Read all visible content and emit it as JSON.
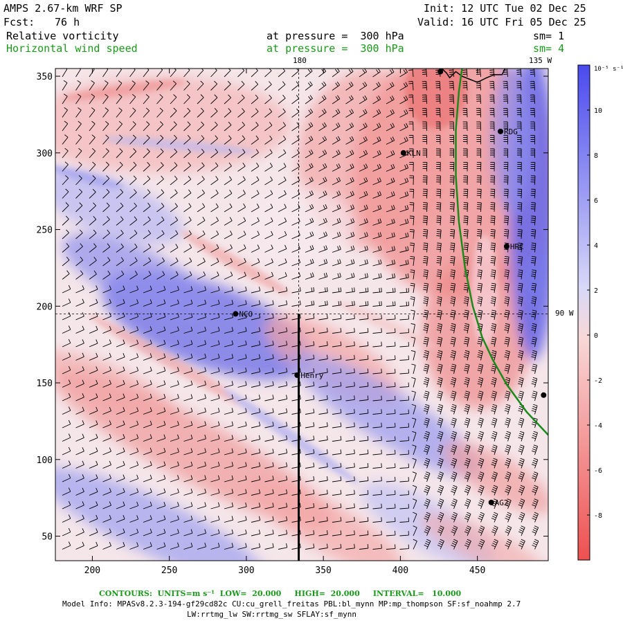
{
  "header": {
    "model": "AMPS 2.67-km WRF SP",
    "fcst_label": "Fcst:",
    "fcst_value": "76 h",
    "init": "Init: 12 UTC Tue 02 Dec 25",
    "valid": "Valid: 16 UTC Fri 05 Dec 25",
    "field1": "Relative vorticity",
    "field1_level": "at pressure =  300 hPa",
    "field1_sm": "sm= 1",
    "field2": "Horizontal wind speed",
    "field2_level": "at pressure =  300 hPa",
    "field2_sm": "sm= 4"
  },
  "lon_labels": {
    "top_180": "180",
    "top_135w": "135 W",
    "right_90w": "90 W"
  },
  "colors": {
    "positive": "#5a5ae6",
    "negative": "#e65a5a",
    "contour": "#1a8a1a",
    "barb": "#000000"
  },
  "chart_data": {
    "type": "heatmap",
    "x_range": [
      176,
      496
    ],
    "y_range": [
      34,
      355
    ],
    "x_ticks": [
      200,
      250,
      300,
      350,
      400,
      450
    ],
    "y_ticks": [
      50,
      100,
      150,
      200,
      250,
      300,
      350
    ],
    "colorbar": {
      "units_label": "10⁻⁵ s⁻¹",
      "range": [
        -10,
        12
      ],
      "tick_values": [
        10,
        8,
        6,
        4,
        2,
        0,
        -2,
        -4,
        -6,
        -8
      ],
      "tick_labels": [
        "10",
        "8",
        "6",
        "4",
        "2",
        "0",
        "-2",
        "-4",
        "-6",
        "-8"
      ]
    },
    "stations": [
      {
        "name": "NCO",
        "x": 293,
        "y": 195
      },
      {
        "name": "Henry",
        "x": 333,
        "y": 155
      },
      {
        "name": "KLN",
        "x": 402,
        "y": 300
      },
      {
        "name": "RDG",
        "x": 465,
        "y": 314
      },
      {
        "name": "HRC",
        "x": 469,
        "y": 239
      },
      {
        "name": "AG2",
        "x": 459,
        "y": 72
      }
    ],
    "unlabeled_stations": [
      {
        "x": 426,
        "y": 353
      },
      {
        "x": 493,
        "y": 142
      }
    ],
    "wind_contour_20ms": [
      [
        496,
        116
      ],
      [
        482,
        131
      ],
      [
        469,
        149
      ],
      [
        460,
        165
      ],
      [
        453,
        180
      ],
      [
        447,
        200
      ],
      [
        442,
        225
      ],
      [
        438,
        255
      ],
      [
        436,
        285
      ],
      [
        436,
        315
      ],
      [
        438,
        340
      ],
      [
        440,
        355
      ]
    ],
    "ross_coast": [
      [
        427,
        355
      ],
      [
        430,
        352
      ],
      [
        432,
        349
      ],
      [
        436,
        353
      ],
      [
        440,
        350
      ],
      [
        445,
        348
      ],
      [
        450,
        346
      ],
      [
        456,
        349
      ],
      [
        461,
        351
      ],
      [
        466,
        351
      ],
      [
        468,
        355
      ]
    ],
    "meridian_180_x": 334,
    "parallel_90w_y": 195,
    "cross_section": {
      "x": 334,
      "y_start": 34,
      "y_end": 195
    }
  },
  "footer": {
    "contours": "CONTOURS:  UNITS=m s⁻¹  LOW=  20.000     HIGH=  20.000     INTERVAL=   10.000",
    "model_info": "Model Info: MPASv8.2.3-194-gf29cd82c CU:cu_grell_freitas PBL:bl_mynn MP:mp_thompson SF:sf_noahmp 2.7",
    "model_info2": "LW:rrtmg_lw SW:rrtmg_sw SFLAY:sf_mynn"
  }
}
